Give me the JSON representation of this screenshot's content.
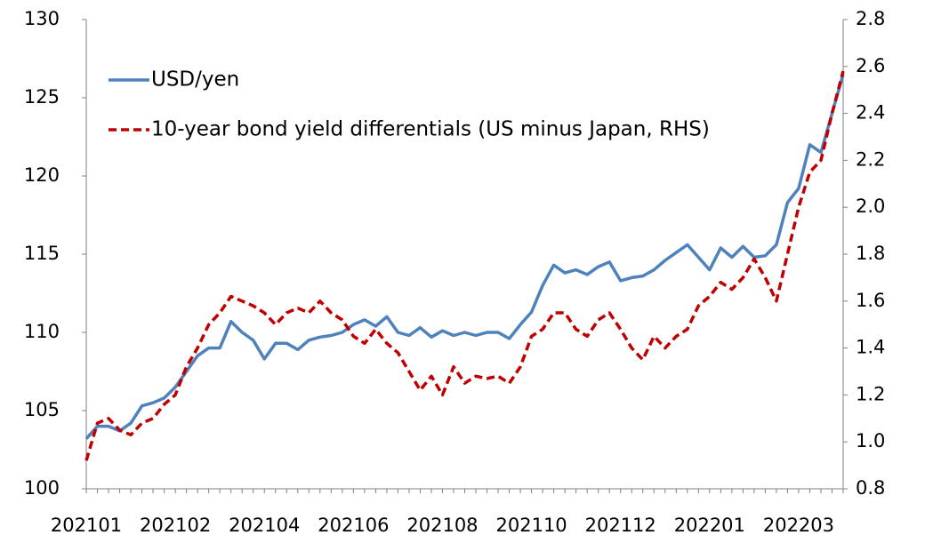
{
  "chart_data": {
    "type": "line",
    "categories": [
      "202101",
      null,
      null,
      null,
      null,
      null,
      null,
      null,
      "202102",
      null,
      null,
      null,
      null,
      null,
      null,
      null,
      "202104",
      null,
      null,
      null,
      null,
      null,
      null,
      null,
      "202106",
      null,
      null,
      null,
      null,
      null,
      null,
      null,
      "202108",
      null,
      null,
      null,
      null,
      null,
      null,
      null,
      "202110",
      null,
      null,
      null,
      null,
      null,
      null,
      null,
      "202112",
      null,
      null,
      null,
      null,
      null,
      null,
      null,
      "202201",
      null,
      null,
      null,
      null,
      null,
      null,
      null,
      "202203",
      null,
      null,
      null,
      null
    ],
    "series": [
      {
        "name": "USD/yen",
        "color": "#4f81bd",
        "style": "solid",
        "values": [
          103.2,
          104.0,
          104.0,
          103.7,
          104.2,
          105.3,
          105.5,
          105.8,
          106.5,
          107.5,
          108.5,
          109.0,
          109.0,
          110.7,
          110.0,
          109.5,
          108.3,
          109.3,
          109.3,
          108.9,
          109.5,
          109.7,
          109.8,
          110.0,
          110.5,
          110.8,
          110.4,
          111.0,
          110.0,
          109.8,
          110.3,
          109.7,
          110.1,
          109.8,
          110.0,
          109.8,
          110.0,
          110.0,
          109.6,
          110.5,
          111.3,
          113.0,
          114.3,
          113.8,
          114.0,
          113.7,
          114.2,
          114.5,
          113.3,
          113.5,
          113.6,
          114.0,
          114.6,
          115.1,
          115.6,
          114.8,
          114.0,
          115.4,
          114.8,
          115.5,
          114.8,
          114.9,
          115.6,
          118.3,
          119.2,
          122.0,
          121.5,
          124.0,
          126.5
        ]
      },
      {
        "name": "10-year bond yield differentials (US minus Japan, RHS)",
        "color": "#c00000",
        "style": "dashed",
        "axis": "y2",
        "values": [
          0.92,
          1.08,
          1.1,
          1.05,
          1.03,
          1.08,
          1.1,
          1.16,
          1.2,
          1.32,
          1.4,
          1.5,
          1.55,
          1.62,
          1.6,
          1.58,
          1.55,
          1.5,
          1.55,
          1.57,
          1.55,
          1.6,
          1.55,
          1.52,
          1.45,
          1.42,
          1.48,
          1.42,
          1.38,
          1.3,
          1.22,
          1.28,
          1.2,
          1.32,
          1.25,
          1.28,
          1.27,
          1.28,
          1.25,
          1.32,
          1.45,
          1.48,
          1.55,
          1.55,
          1.48,
          1.45,
          1.52,
          1.55,
          1.48,
          1.4,
          1.35,
          1.45,
          1.4,
          1.45,
          1.48,
          1.58,
          1.62,
          1.68,
          1.65,
          1.7,
          1.78,
          1.7,
          1.6,
          1.8,
          2.0,
          2.15,
          2.2,
          2.4,
          2.58
        ]
      }
    ],
    "ylim": [
      100,
      130
    ],
    "yticks": [
      100,
      105,
      110,
      115,
      120,
      125,
      130
    ],
    "y2lim": [
      0.8,
      2.8
    ],
    "y2ticks": [
      {
        "value": 0.8,
        "label": "0.8"
      },
      {
        "value": 1.0,
        "label": "1.0"
      },
      1.2,
      1.4,
      1.6,
      1.8,
      {
        "value": 2.0,
        "label": "2.0"
      },
      2.2,
      2.4,
      2.6,
      2.8
    ],
    "grid": false,
    "legend": "upper left"
  }
}
